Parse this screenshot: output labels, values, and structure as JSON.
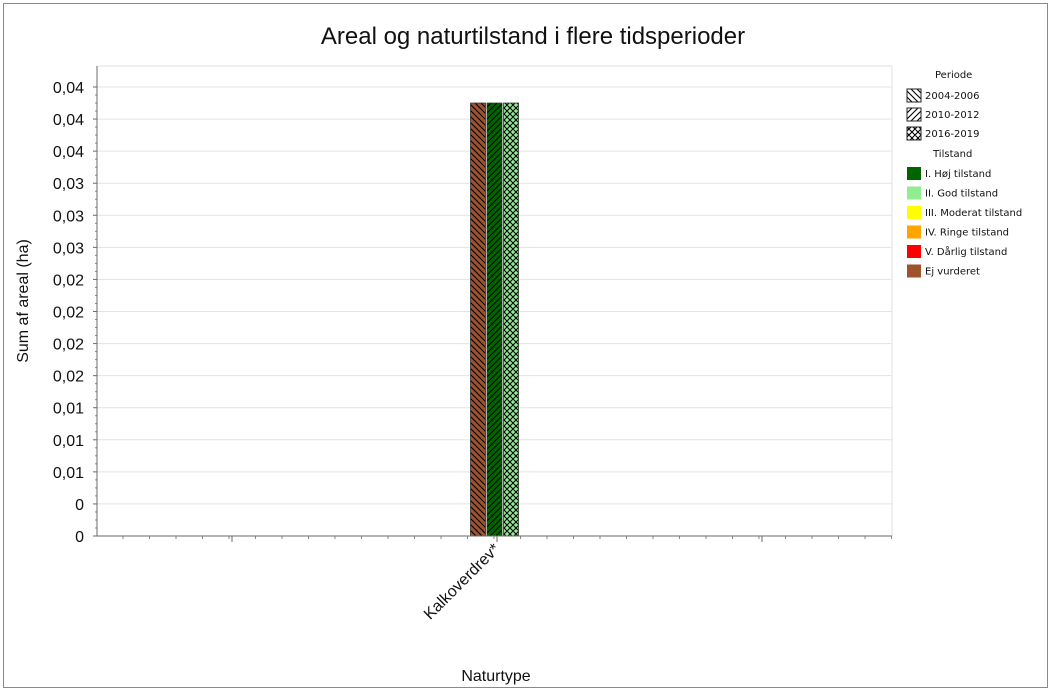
{
  "chart_data": {
    "type": "bar",
    "title": "Areal og naturtilstand i flere tidsperioder",
    "xlabel": "Naturtype",
    "ylabel": "Sum af areal (ha)",
    "categories": [
      "Kalkoverdrev*"
    ],
    "ylim": [
      0,
      0.042
    ],
    "yticks": [
      0,
      0.003,
      0.006,
      0.009,
      0.012,
      0.015,
      0.018,
      0.021,
      0.024,
      0.027,
      0.03,
      0.033,
      0.036,
      0.039,
      0.042
    ],
    "ytick_labels": [
      "0",
      "0",
      "0,01",
      "0,01",
      "0,01",
      "0,02",
      "0,02",
      "0,02",
      "0,02",
      "0,03",
      "0,03",
      "0,03",
      "0,04",
      "0,04",
      "0,04"
    ],
    "grid": true,
    "legend_position": "right",
    "legend_period_title": "Periode",
    "legend_condition_title": "Tilstand",
    "periods": [
      {
        "name": "2004-2006",
        "pattern": "backslash"
      },
      {
        "name": "2010-2012",
        "pattern": "slash"
      },
      {
        "name": "2016-2019",
        "pattern": "crosshatch"
      }
    ],
    "conditions": [
      {
        "name": "I. Høj tilstand",
        "color": "#006400"
      },
      {
        "name": "II. God tilstand",
        "color": "#90EE90"
      },
      {
        "name": "III. Moderat tilstand",
        "color": "#FFFF00"
      },
      {
        "name": "IV. Ringe tilstand",
        "color": "#FFA500"
      },
      {
        "name": "V. Dårlig tilstand",
        "color": "#FF0000"
      },
      {
        "name": "Ej vurderet",
        "color": "#A0522D"
      }
    ],
    "series": [
      {
        "category": "Kalkoverdrev*",
        "period": "2004-2006",
        "condition": "Ej vurderet",
        "value": 0.0405
      },
      {
        "category": "Kalkoverdrev*",
        "period": "2010-2012",
        "condition": "I. Høj tilstand",
        "value": 0.0405
      },
      {
        "category": "Kalkoverdrev*",
        "period": "2016-2019",
        "condition": "II. God tilstand",
        "value": 0.0405
      }
    ]
  }
}
